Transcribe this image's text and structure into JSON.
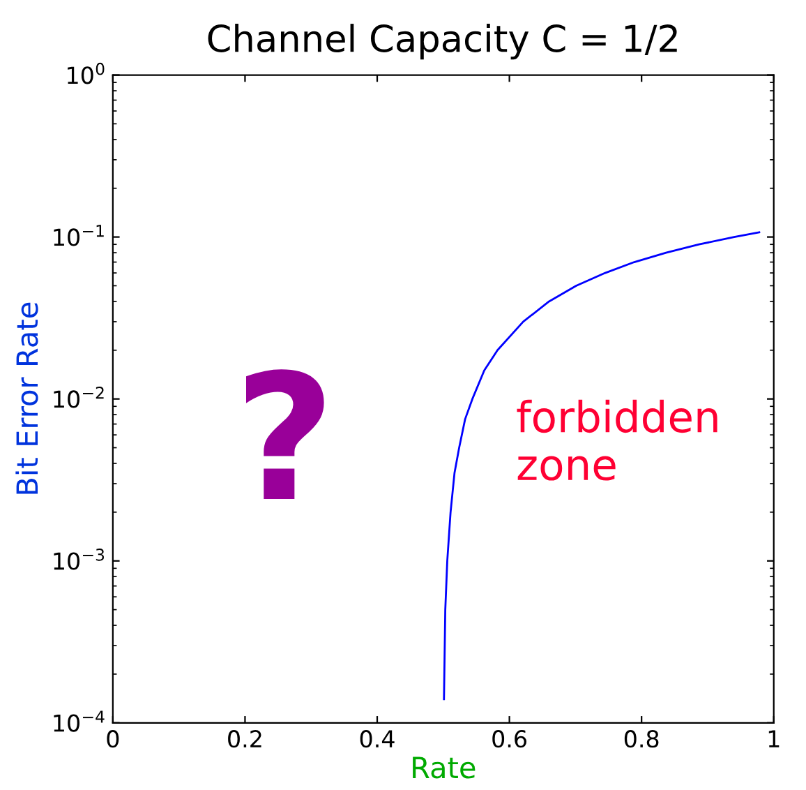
{
  "chart_data": {
    "type": "line",
    "title": "Channel Capacity C = 1/2",
    "xlabel": "Rate",
    "ylabel": "Bit Error Rate",
    "annotations": [
      "?",
      "forbidden\nzone"
    ],
    "log": "y",
    "xlim": [
      0,
      1
    ],
    "ylim": [
      0.0001,
      1
    ],
    "xticks": [
      0,
      0.2,
      0.4,
      0.6,
      0.8,
      1
    ],
    "yticks": [
      {
        "value": 0.0001,
        "label": "10$^{−4}$"
      },
      {
        "value": 0.001,
        "label": "10$^{−3}$"
      },
      {
        "value": 0.01,
        "label": "10$^{−2}$"
      },
      {
        "value": 0.1,
        "label": "10$^{−1}$"
      },
      {
        "value": 1,
        "label": "10$^{0}$"
      }
    ],
    "series": [
      {
        "color": "#0000ff",
        "x": [
          0.501,
          0.503,
          0.506,
          0.511,
          0.517,
          0.524,
          0.533,
          0.544,
          0.562,
          0.582,
          0.621,
          0.66,
          0.701,
          0.745,
          0.789,
          0.837,
          0.887,
          0.94,
          0.978
        ],
        "values": [
          0.00014,
          0.0005,
          0.001,
          0.002,
          0.0035,
          0.005,
          0.0075,
          0.01,
          0.015,
          0.02,
          0.03,
          0.04,
          0.05,
          0.06,
          0.07,
          0.08,
          0.09,
          0.1,
          0.107
        ]
      }
    ]
  }
}
